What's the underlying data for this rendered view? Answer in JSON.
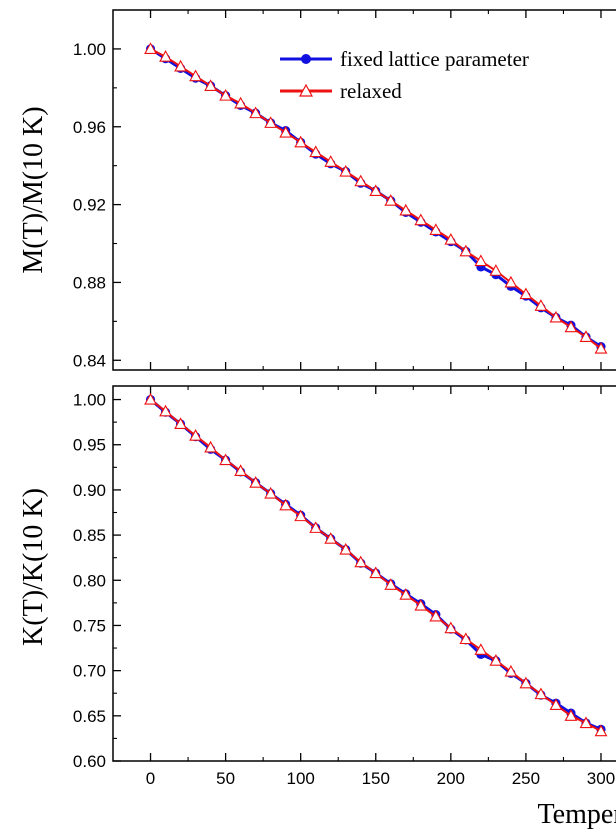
{
  "colors": {
    "fixed": "#1010e0",
    "relaxed": "#ee1111",
    "axis": "#000000"
  },
  "chart_data": [
    {
      "type": "line",
      "panel": "top",
      "ylabel": "M(T)/M(10 K)",
      "xlim": [
        -25,
        310
      ],
      "ylim": [
        0.835,
        1.02
      ],
      "yticks": [
        {
          "v": 0.84,
          "label": "0.84"
        },
        {
          "v": 0.88,
          "label": "0.88"
        },
        {
          "v": 0.92,
          "label": "0.92"
        },
        {
          "v": 0.96,
          "label": "0.96"
        },
        {
          "v": 1.0,
          "label": "1.00"
        }
      ],
      "legend": {
        "placement": "top-right"
      },
      "x": [
        0,
        10,
        20,
        30,
        40,
        50,
        60,
        70,
        80,
        90,
        100,
        110,
        120,
        130,
        140,
        150,
        160,
        170,
        180,
        190,
        200,
        210,
        220,
        230,
        240,
        250,
        260,
        270,
        280,
        290,
        300
      ],
      "series": [
        {
          "name": "fixed lattice parameter",
          "marker": "circle",
          "values": [
            1.0,
            0.995,
            0.99,
            0.985,
            0.981,
            0.976,
            0.971,
            0.967,
            0.962,
            0.958,
            0.952,
            0.946,
            0.941,
            0.937,
            0.931,
            0.927,
            0.922,
            0.916,
            0.911,
            0.906,
            0.901,
            0.896,
            0.888,
            0.884,
            0.878,
            0.873,
            0.867,
            0.862,
            0.858,
            0.852,
            0.847
          ]
        },
        {
          "name": "relaxed",
          "marker": "triangle",
          "values": [
            1.0,
            0.996,
            0.991,
            0.986,
            0.981,
            0.976,
            0.972,
            0.967,
            0.962,
            0.957,
            0.952,
            0.947,
            0.942,
            0.937,
            0.932,
            0.927,
            0.922,
            0.917,
            0.912,
            0.907,
            0.902,
            0.896,
            0.891,
            0.886,
            0.88,
            0.874,
            0.868,
            0.862,
            0.857,
            0.852,
            0.846
          ]
        }
      ]
    },
    {
      "type": "line",
      "panel": "bottom",
      "xlabel": "Temperature (K)",
      "ylabel": "K(T)/K(10 K)",
      "xlim": [
        -25,
        310
      ],
      "ylim": [
        0.6,
        1.015
      ],
      "xticks": [
        {
          "v": 0,
          "label": "0"
        },
        {
          "v": 50,
          "label": "50"
        },
        {
          "v": 100,
          "label": "100"
        },
        {
          "v": 150,
          "label": "150"
        },
        {
          "v": 200,
          "label": "200"
        },
        {
          "v": 250,
          "label": "250"
        },
        {
          "v": 300,
          "label": "300"
        }
      ],
      "yticks": [
        {
          "v": 0.6,
          "label": "0.60"
        },
        {
          "v": 0.65,
          "label": "0.65"
        },
        {
          "v": 0.7,
          "label": "0.70"
        },
        {
          "v": 0.75,
          "label": "0.75"
        },
        {
          "v": 0.8,
          "label": "0.80"
        },
        {
          "v": 0.85,
          "label": "0.85"
        },
        {
          "v": 0.9,
          "label": "0.90"
        },
        {
          "v": 0.95,
          "label": "0.95"
        },
        {
          "v": 1.0,
          "label": "1.00"
        }
      ],
      "x": [
        0,
        10,
        20,
        30,
        40,
        50,
        60,
        70,
        80,
        90,
        100,
        110,
        120,
        130,
        140,
        150,
        160,
        170,
        180,
        190,
        200,
        210,
        220,
        230,
        240,
        250,
        260,
        270,
        280,
        290,
        300
      ],
      "series": [
        {
          "name": "fixed lattice parameter",
          "marker": "circle",
          "values": [
            1.0,
            0.986,
            0.973,
            0.959,
            0.945,
            0.933,
            0.92,
            0.908,
            0.896,
            0.884,
            0.872,
            0.858,
            0.846,
            0.834,
            0.819,
            0.808,
            0.796,
            0.785,
            0.774,
            0.762,
            0.746,
            0.734,
            0.718,
            0.711,
            0.697,
            0.686,
            0.673,
            0.664,
            0.653,
            0.642,
            0.635
          ]
        },
        {
          "name": "relaxed",
          "marker": "triangle",
          "values": [
            1.0,
            0.987,
            0.973,
            0.96,
            0.947,
            0.933,
            0.921,
            0.908,
            0.896,
            0.883,
            0.871,
            0.858,
            0.846,
            0.834,
            0.82,
            0.808,
            0.795,
            0.784,
            0.772,
            0.76,
            0.747,
            0.735,
            0.723,
            0.711,
            0.699,
            0.686,
            0.674,
            0.662,
            0.65,
            0.642,
            0.633
          ]
        }
      ]
    }
  ]
}
